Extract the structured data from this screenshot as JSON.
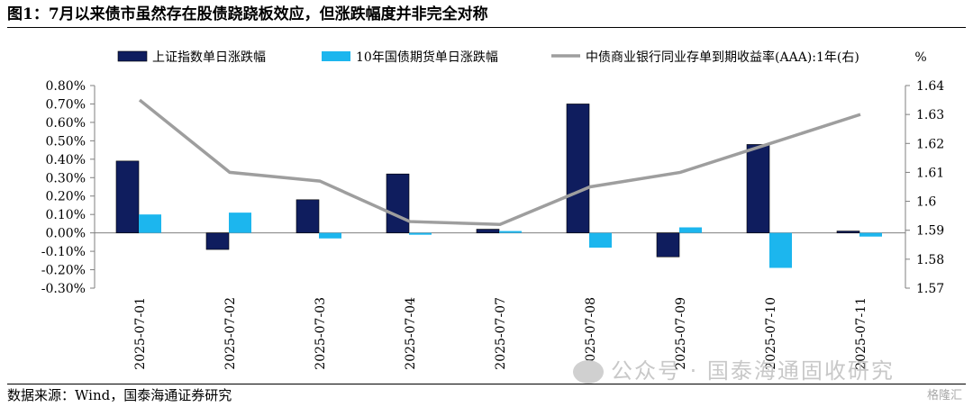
{
  "figure": {
    "title": "图1：7月以来债市虽然存在股债跷跷板效应，但涨跌幅度并非完全对称",
    "source": "数据来源：Wind，国泰海通证券研究",
    "watermark": "公众号 · 国泰海通固收研究",
    "logo_text": "格隆汇"
  },
  "chart_data": {
    "type": "bar",
    "categories": [
      "2025-07-01",
      "2025-07-02",
      "2025-07-03",
      "2025-07-04",
      "2025-07-07",
      "2025-07-08",
      "2025-07-09",
      "2025-07-10",
      "2025-07-11"
    ],
    "series": [
      {
        "name": "上证指数单日涨跌幅",
        "type": "bar",
        "axis": "left",
        "color": "#0f1d5e",
        "values": [
          0.39,
          -0.09,
          0.18,
          0.32,
          0.02,
          0.7,
          -0.13,
          0.48,
          0.01
        ]
      },
      {
        "name": "10年国债期货单日涨跌幅",
        "type": "bar",
        "axis": "left",
        "color": "#1cb6ee",
        "values": [
          0.1,
          0.11,
          -0.03,
          -0.01,
          0.01,
          -0.08,
          0.03,
          -0.19,
          -0.02
        ]
      },
      {
        "name": "中债商业银行同业存单到期收益率(AAA):1年(右)",
        "type": "line",
        "axis": "right",
        "color": "#9e9e9e",
        "values": [
          1.635,
          1.61,
          1.607,
          1.593,
          1.592,
          1.605,
          1.61,
          1.62,
          1.63
        ]
      }
    ],
    "y_left": {
      "min": -0.3,
      "max": 0.8,
      "step": 0.1,
      "tick_labels": [
        "-0.30%",
        "-0.20%",
        "-0.10%",
        "0.00%",
        "0.10%",
        "0.20%",
        "0.30%",
        "0.40%",
        "0.50%",
        "0.60%",
        "0.70%",
        "0.80%"
      ]
    },
    "y_right": {
      "min": 1.57,
      "max": 1.64,
      "step": 0.01,
      "unit_label": "%",
      "tick_labels": [
        "1.57",
        "1.58",
        "1.59",
        "1.6",
        "1.61",
        "1.62",
        "1.63",
        "1.64"
      ]
    },
    "legend_position": "top",
    "grid": false
  }
}
